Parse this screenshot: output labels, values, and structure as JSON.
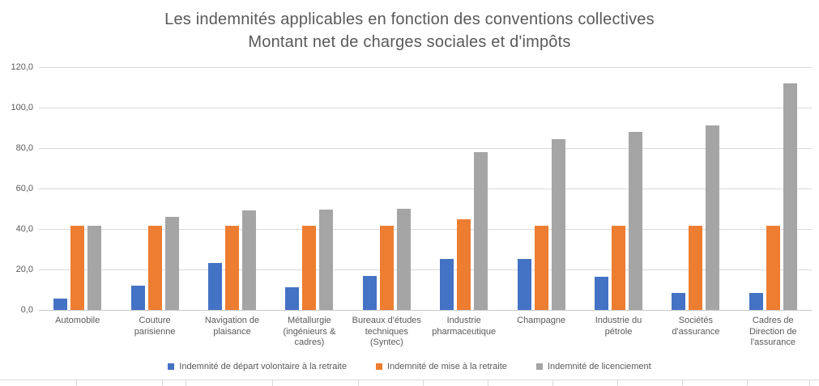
{
  "chart_data": {
    "type": "bar",
    "title": "Les indemnités applicables en fonction des conventions collectives",
    "subtitle": "Montant net de charges sociales et d'impôts",
    "categories": [
      "Automobile",
      "Couture parisienne",
      "Navigation de plaisance",
      "Métallurgie (ingénieurs & cadres)",
      "Bureaux d'études techniques (Syntec)",
      "Industrie pharmaceutique",
      "Champagne",
      "Industrie du pétrole",
      "Sociétés d'assurance",
      "Cadres de Direction de l'assurance"
    ],
    "series": [
      {
        "name": "Indemnité de départ volontaire à la retraite",
        "color": "#4472c4",
        "values": [
          5.8,
          12.0,
          23.2,
          11.2,
          17.0,
          25.2,
          25.2,
          16.6,
          8.3,
          8.3
        ]
      },
      {
        "name": "Indemnité de mise à la retraite",
        "color": "#ed7d31",
        "values": [
          41.7,
          41.7,
          41.7,
          41.7,
          41.7,
          44.9,
          41.7,
          41.7,
          41.7,
          41.7
        ]
      },
      {
        "name": "Indemnité de licenciement",
        "color": "#a5a5a5",
        "values": [
          41.7,
          46.0,
          49.4,
          49.6,
          49.9,
          78.1,
          84.6,
          87.9,
          91.4,
          112.2
        ]
      }
    ],
    "y_ticks": [
      "120,0",
      "100,0",
      "80,0",
      "60,0",
      "40,0",
      "20,0",
      "0,0"
    ],
    "ylim": [
      0,
      120
    ],
    "grid": true,
    "legend_position": "bottom"
  },
  "colors": {
    "text": "#595959",
    "gridline": "#d9d9d9",
    "axis": "#c9c9c9"
  },
  "spreadsheet_ticks_x": [
    94,
    200,
    229,
    336,
    442,
    522,
    602,
    682,
    762,
    842,
    922,
    999
  ]
}
